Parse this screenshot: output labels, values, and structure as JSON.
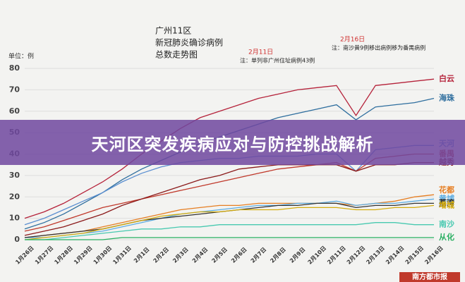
{
  "chart_data": {
    "type": "line",
    "title": "天河区突发疾病应对与防控挑战解析",
    "title_lines": [
      "广州11区",
      "新冠肺炎确诊病例",
      "总数走势图"
    ],
    "unit_label": "单位：例",
    "annotations": [
      {
        "date": "2月11日",
        "note": "注：单列非广州住址病例43例"
      },
      {
        "date": "2月16日",
        "note": "注：南沙黄9例移出病例移为番禺病例"
      }
    ],
    "source": "南方都市报",
    "categories": [
      "1月26日",
      "1月27日",
      "1月28日",
      "1月29日",
      "1月30日",
      "1月31日",
      "2月1日",
      "2月2日",
      "2月3日",
      "2月4日",
      "2月5日",
      "2月6日",
      "2月7日",
      "2月8日",
      "2月9日",
      "2月10日",
      "2月11日",
      "2月12日",
      "2月13日",
      "2月14日",
      "2月15日",
      "2月16日"
    ],
    "ylim": [
      0,
      80
    ],
    "yticks": [
      0,
      10,
      20,
      30,
      40,
      50,
      60,
      70,
      80
    ],
    "grid": true,
    "series": [
      {
        "name": "白云",
        "color": "#b5223a",
        "values": [
          10,
          13,
          17,
          22,
          27,
          33,
          40,
          46,
          52,
          57,
          60,
          63,
          66,
          68,
          70,
          71,
          72,
          58,
          72,
          73,
          74,
          75
        ]
      },
      {
        "name": "海珠",
        "color": "#2e6e9e",
        "values": [
          5,
          8,
          12,
          17,
          22,
          28,
          33,
          37,
          41,
          45,
          48,
          51,
          54,
          57,
          59,
          61,
          63,
          56,
          62,
          63,
          64,
          66
        ]
      },
      {
        "name": "天河",
        "color": "#5b8fd1",
        "values": [
          7,
          10,
          14,
          18,
          22,
          27,
          31,
          34,
          36,
          37,
          38,
          38,
          39,
          39,
          39,
          40,
          40,
          32,
          42,
          43,
          44,
          44
        ]
      },
      {
        "name": "番禺",
        "color": "#c0392b",
        "values": [
          4,
          6,
          9,
          12,
          15,
          17,
          19,
          21,
          23,
          25,
          27,
          29,
          31,
          33,
          34,
          35,
          36,
          32,
          38,
          39,
          40,
          40
        ]
      },
      {
        "name": "越秀",
        "color": "#8b1a1a",
        "values": [
          2,
          4,
          6,
          9,
          12,
          16,
          19,
          22,
          25,
          28,
          30,
          33,
          34,
          35,
          35,
          35,
          35,
          32,
          35,
          35,
          36,
          36
        ]
      },
      {
        "name": "花都",
        "color": "#e67e22",
        "values": [
          1,
          2,
          3,
          4,
          6,
          8,
          10,
          12,
          14,
          15,
          16,
          16,
          17,
          17,
          17,
          17,
          17,
          16,
          17,
          18,
          20,
          21
        ]
      },
      {
        "name": "黄埔",
        "color": "#5dade2",
        "values": [
          1,
          1,
          2,
          3,
          4,
          6,
          8,
          10,
          12,
          13,
          14,
          15,
          16,
          16,
          17,
          17,
          18,
          16,
          17,
          17,
          18,
          19
        ]
      },
      {
        "name": "荔湾",
        "color": "#333333",
        "values": [
          1,
          2,
          3,
          4,
          5,
          7,
          9,
          10,
          11,
          12,
          13,
          14,
          15,
          16,
          16,
          17,
          17,
          15,
          16,
          16,
          17,
          17
        ]
      },
      {
        "name": "增城",
        "color": "#d4ac0d",
        "values": [
          0,
          1,
          2,
          3,
          5,
          7,
          9,
          11,
          12,
          13,
          13,
          14,
          14,
          14,
          15,
          15,
          15,
          14,
          14,
          15,
          15,
          16
        ]
      },
      {
        "name": "南沙",
        "color": "#48c9b0",
        "values": [
          0,
          0,
          1,
          2,
          3,
          4,
          5,
          5,
          6,
          6,
          7,
          7,
          7,
          7,
          7,
          7,
          7,
          7,
          8,
          8,
          7,
          7
        ]
      },
      {
        "name": "从化",
        "color": "#27ae60",
        "values": [
          0,
          0,
          0,
          0,
          0,
          1,
          1,
          1,
          1,
          1,
          1,
          1,
          1,
          1,
          1,
          1,
          1,
          1,
          1,
          1,
          1,
          1
        ]
      }
    ]
  }
}
